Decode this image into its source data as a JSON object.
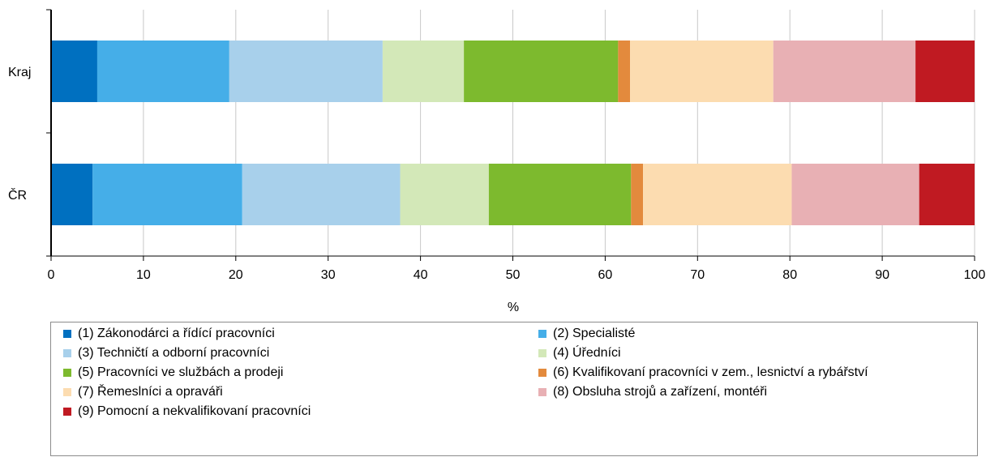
{
  "chart_data": {
    "type": "bar",
    "orientation": "horizontal",
    "stacked": true,
    "title": "",
    "xlabel": "%",
    "ylabel": "",
    "xlim": [
      0,
      100
    ],
    "x_ticks": [
      0,
      10,
      20,
      30,
      40,
      50,
      60,
      70,
      80,
      90,
      100
    ],
    "grid": true,
    "legend_position": "bottom",
    "categories": [
      "Kraj",
      "ČR"
    ],
    "series": [
      {
        "name": "(1) Zákonodárci a řídící pracovníci",
        "color": "#0070c0",
        "values": [
          5.0,
          4.5
        ]
      },
      {
        "name": "(2) Specialisté",
        "color": "#45aee8",
        "values": [
          14.3,
          16.2
        ]
      },
      {
        "name": "(3) Techničtí a odborní pracovníci",
        "color": "#a8d0eb",
        "values": [
          16.6,
          17.1
        ]
      },
      {
        "name": "(4) Úředníci",
        "color": "#d3e8b8",
        "values": [
          8.8,
          9.6
        ]
      },
      {
        "name": "(5) Pracovníci ve službách a prodeji",
        "color": "#7dba2e",
        "values": [
          16.7,
          15.4
        ]
      },
      {
        "name": "(6) Kvalifikovaní pracovníci v zem., lesnictví a rybářství",
        "color": "#e38a3d",
        "values": [
          1.3,
          1.3
        ]
      },
      {
        "name": "(7) Řemeslníci a opraváři",
        "color": "#fcdcb0",
        "values": [
          15.5,
          16.1
        ]
      },
      {
        "name": "(8) Obsluha strojů a zařízení, montéři",
        "color": "#e8b0b4",
        "values": [
          15.4,
          13.8
        ]
      },
      {
        "name": "(9) Pomocní a nekvalifikovaní pracovníci",
        "color": "#c01a22",
        "values": [
          6.4,
          6.0
        ]
      }
    ]
  }
}
